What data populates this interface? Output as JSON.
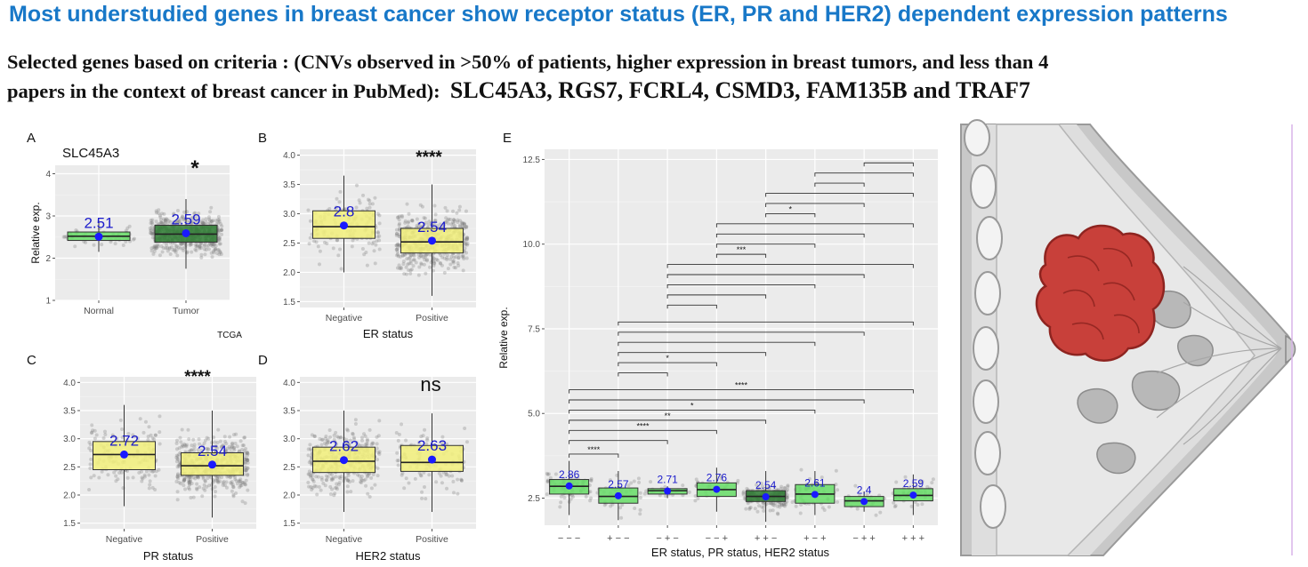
{
  "header": {
    "title": "Most understudied genes in breast cancer show receptor status (ER, PR and HER2) dependent expression patterns",
    "criteria_line1": "Selected genes based on criteria : (CNVs observed in >50% of patients, higher expression in breast tumors, and less than 4",
    "criteria_line2_prefix": "papers in the context of breast  cancer in PubMed):",
    "criteria_genes": "SLC45A3, RGS7, FCRL4, CSMD3, FAM135B and TRAF7"
  },
  "colors": {
    "box_green": "#66dd66",
    "box_darkgreen": "#2e7d32",
    "box_yellow": "#f2f07a",
    "mean_dot": "#1a1aff",
    "mean_label": "#1a1acc",
    "panel_bg": "#ebebeb",
    "jitter": "#7a7a7a"
  },
  "chart_data": [
    {
      "panel": "A",
      "type": "box",
      "gene_label": "SLC45A3",
      "note": "TCGA",
      "ylabel": "Relative exp.",
      "xlabel": "",
      "ylim": [
        1,
        4.2
      ],
      "yticks": [
        "1",
        "2",
        "3",
        "4"
      ],
      "significance": "*",
      "categories": [
        "Normal",
        "Tumor"
      ],
      "means": [
        2.51,
        2.59
      ],
      "mean_labels": [
        "2.51",
        "2.59"
      ],
      "q1": [
        2.42,
        2.38
      ],
      "median": [
        2.52,
        2.57
      ],
      "q3": [
        2.62,
        2.78
      ],
      "whisker_low": [
        2.15,
        1.75
      ],
      "whisker_high": [
        2.9,
        3.4
      ],
      "box_colors": [
        "#66dd66",
        "#2e7d32"
      ]
    },
    {
      "panel": "B",
      "type": "box",
      "ylabel": "",
      "xlabel": "ER status",
      "ylim": [
        1.4,
        4.1
      ],
      "yticks": [
        "1.5",
        "2.0",
        "2.5",
        "3.0",
        "3.5",
        "4.0"
      ],
      "significance": "****",
      "categories": [
        "Negative",
        "Positive"
      ],
      "means": [
        2.8,
        2.54
      ],
      "mean_labels": [
        "2.8",
        "2.54"
      ],
      "q1": [
        2.58,
        2.33
      ],
      "median": [
        2.78,
        2.52
      ],
      "q3": [
        3.05,
        2.75
      ],
      "whisker_low": [
        2.0,
        1.6
      ],
      "whisker_high": [
        3.65,
        3.5
      ],
      "box_colors": [
        "#f2f07a",
        "#f2f07a"
      ]
    },
    {
      "panel": "C",
      "type": "box",
      "ylabel": "",
      "xlabel": "PR status",
      "ylim": [
        1.4,
        4.1
      ],
      "yticks": [
        "1.5",
        "2.0",
        "2.5",
        "3.0",
        "3.5",
        "4.0"
      ],
      "significance": "****",
      "categories": [
        "Negative",
        "Positive"
      ],
      "means": [
        2.72,
        2.54
      ],
      "mean_labels": [
        "2.72",
        "2.54"
      ],
      "q1": [
        2.45,
        2.35
      ],
      "median": [
        2.72,
        2.52
      ],
      "q3": [
        2.95,
        2.75
      ],
      "whisker_low": [
        1.8,
        1.6
      ],
      "whisker_high": [
        3.6,
        3.5
      ],
      "box_colors": [
        "#f2f07a",
        "#f2f07a"
      ]
    },
    {
      "panel": "D",
      "type": "box",
      "ylabel": "",
      "xlabel": "HER2 status",
      "ylim": [
        1.4,
        4.1
      ],
      "yticks": [
        "1.5",
        "2.0",
        "2.5",
        "3.0",
        "3.5",
        "4.0"
      ],
      "significance": "ns",
      "categories": [
        "Negative",
        "Positive"
      ],
      "means": [
        2.62,
        2.63
      ],
      "mean_labels": [
        "2.62",
        "2.63"
      ],
      "q1": [
        2.4,
        2.42
      ],
      "median": [
        2.6,
        2.58
      ],
      "q3": [
        2.85,
        2.88
      ],
      "whisker_low": [
        1.7,
        1.7
      ],
      "whisker_high": [
        3.5,
        3.45
      ],
      "box_colors": [
        "#f2f07a",
        "#f2f07a"
      ]
    },
    {
      "panel": "E",
      "type": "box",
      "ylabel": "Relative exp.",
      "xlabel": "ER status, PR status, HER2 status",
      "ylim": [
        1.7,
        12.8
      ],
      "yticks": [
        2.5,
        5.0,
        7.5,
        10.0,
        12.5
      ],
      "ytick_labels": [
        "2.5",
        "5.0",
        "7.5",
        "10.0",
        "12.5"
      ],
      "categories": [
        "− − −",
        "+ − −",
        "− + −",
        "− − +",
        "+ + −",
        "+ − +",
        "− + +",
        "+ + +"
      ],
      "means": [
        2.86,
        2.57,
        2.71,
        2.76,
        2.54,
        2.61,
        2.4,
        2.59
      ],
      "mean_labels": [
        "2.86",
        "2.57",
        "2.71",
        "2.76",
        "2.54",
        "2.61",
        "2.4",
        "2.59"
      ],
      "q1": [
        2.62,
        2.35,
        2.62,
        2.55,
        2.4,
        2.35,
        2.25,
        2.42
      ],
      "median": [
        2.85,
        2.55,
        2.72,
        2.75,
        2.55,
        2.62,
        2.42,
        2.58
      ],
      "q3": [
        3.05,
        2.8,
        2.78,
        2.95,
        2.72,
        2.9,
        2.55,
        2.78
      ],
      "whisker_low": [
        2.0,
        1.85,
        2.5,
        2.1,
        1.8,
        2.0,
        2.1,
        2.0
      ],
      "whisker_high": [
        3.6,
        3.3,
        2.85,
        3.4,
        3.3,
        3.3,
        2.7,
        3.2
      ],
      "box_colors": [
        "#66dd66",
        "#66dd66",
        "#66dd66",
        "#66dd66",
        "#2e7d32",
        "#66dd66",
        "#66dd66",
        "#66dd66"
      ],
      "comparisons": [
        {
          "from": 0,
          "to": 1,
          "y": 3.8,
          "label": "****"
        },
        {
          "from": 0,
          "to": 2,
          "y": 4.2,
          "label": ""
        },
        {
          "from": 0,
          "to": 3,
          "y": 4.5,
          "label": "****"
        },
        {
          "from": 0,
          "to": 4,
          "y": 4.8,
          "label": "**"
        },
        {
          "from": 0,
          "to": 5,
          "y": 5.1,
          "label": "*"
        },
        {
          "from": 0,
          "to": 6,
          "y": 5.4,
          "label": ""
        },
        {
          "from": 0,
          "to": 7,
          "y": 5.7,
          "label": "****"
        },
        {
          "from": 1,
          "to": 2,
          "y": 6.2,
          "label": ""
        },
        {
          "from": 1,
          "to": 3,
          "y": 6.5,
          "label": "*"
        },
        {
          "from": 1,
          "to": 4,
          "y": 6.8,
          "label": ""
        },
        {
          "from": 1,
          "to": 5,
          "y": 7.1,
          "label": ""
        },
        {
          "from": 1,
          "to": 6,
          "y": 7.4,
          "label": ""
        },
        {
          "from": 1,
          "to": 7,
          "y": 7.7,
          "label": ""
        },
        {
          "from": 2,
          "to": 3,
          "y": 8.2,
          "label": ""
        },
        {
          "from": 2,
          "to": 4,
          "y": 8.5,
          "label": ""
        },
        {
          "from": 2,
          "to": 5,
          "y": 8.8,
          "label": ""
        },
        {
          "from": 2,
          "to": 6,
          "y": 9.1,
          "label": ""
        },
        {
          "from": 2,
          "to": 7,
          "y": 9.4,
          "label": ""
        },
        {
          "from": 3,
          "to": 4,
          "y": 9.7,
          "label": "***"
        },
        {
          "from": 3,
          "to": 5,
          "y": 10.0,
          "label": ""
        },
        {
          "from": 3,
          "to": 6,
          "y": 10.3,
          "label": ""
        },
        {
          "from": 3,
          "to": 7,
          "y": 10.6,
          "label": ""
        },
        {
          "from": 4,
          "to": 5,
          "y": 10.9,
          "label": "*"
        },
        {
          "from": 4,
          "to": 6,
          "y": 11.2,
          "label": ""
        },
        {
          "from": 4,
          "to": 7,
          "y": 11.5,
          "label": ""
        },
        {
          "from": 5,
          "to": 6,
          "y": 11.8,
          "label": ""
        },
        {
          "from": 5,
          "to": 7,
          "y": 12.1,
          "label": ""
        },
        {
          "from": 6,
          "to": 7,
          "y": 12.4,
          "label": ""
        }
      ]
    }
  ]
}
